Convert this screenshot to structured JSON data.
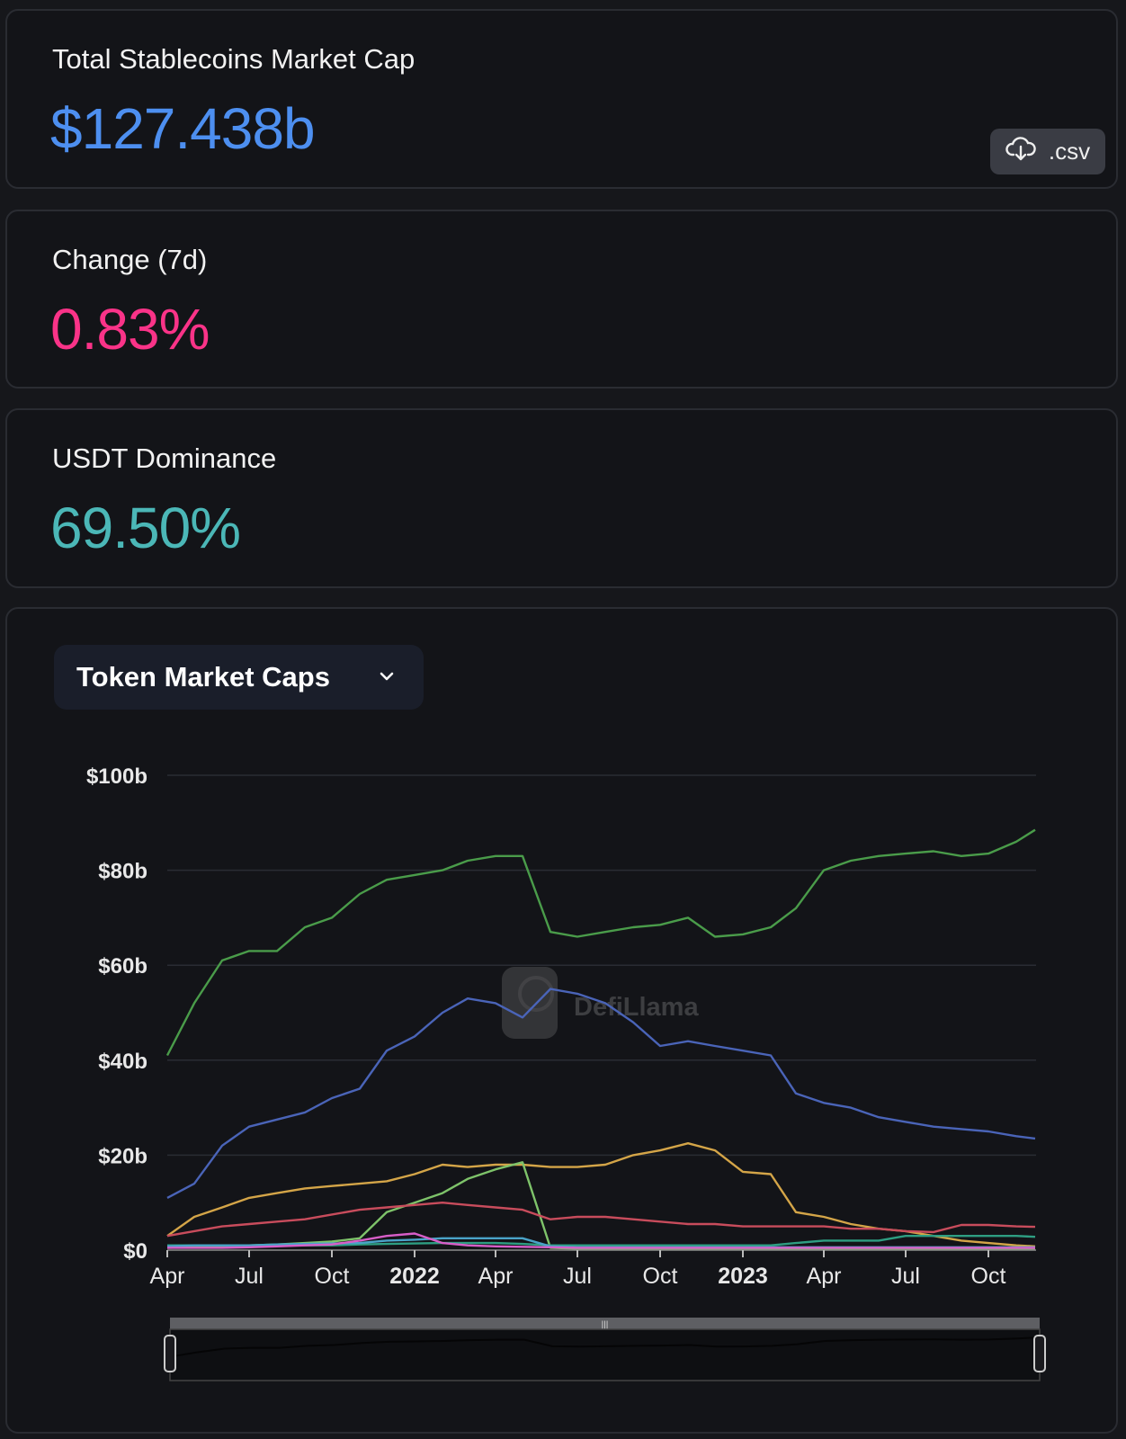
{
  "cards": {
    "total": {
      "label": "Total Stablecoins Market Cap",
      "value": "$127.438b",
      "color": "#4d8ff0"
    },
    "change": {
      "label": "Change (7d)",
      "value": "0.83%",
      "color": "#fa3388"
    },
    "dominance": {
      "label": "USDT Dominance",
      "value": "69.50%",
      "color": "#4bb7b7"
    }
  },
  "csv_button": {
    "label": ".csv",
    "icon": "cloud-download-icon"
  },
  "chart_selector": {
    "label": "Token Market Caps",
    "icon": "chevron-down-icon"
  },
  "watermark": "DefiLlama",
  "chart_data": {
    "type": "line",
    "title": "",
    "xlabel": "",
    "ylabel": "",
    "ylim": [
      0,
      100
    ],
    "y_ticks": [
      {
        "v": 0,
        "label": "$0"
      },
      {
        "v": 20,
        "label": "$20b"
      },
      {
        "v": 40,
        "label": "$40b"
      },
      {
        "v": 60,
        "label": "$60b"
      },
      {
        "v": 80,
        "label": "$80b"
      },
      {
        "v": 100,
        "label": "$100b"
      }
    ],
    "x_ticks": [
      {
        "date": "2021-04-01",
        "label": "Apr",
        "bold": false
      },
      {
        "date": "2021-07-01",
        "label": "Jul",
        "bold": false
      },
      {
        "date": "2021-10-01",
        "label": "Oct",
        "bold": false
      },
      {
        "date": "2022-01-01",
        "label": "2022",
        "bold": true
      },
      {
        "date": "2022-04-01",
        "label": "Apr",
        "bold": false
      },
      {
        "date": "2022-07-01",
        "label": "Jul",
        "bold": false
      },
      {
        "date": "2022-10-01",
        "label": "Oct",
        "bold": false
      },
      {
        "date": "2023-01-01",
        "label": "2023",
        "bold": true
      },
      {
        "date": "2023-04-01",
        "label": "Apr",
        "bold": false
      },
      {
        "date": "2023-07-01",
        "label": "Jul",
        "bold": false
      },
      {
        "date": "2023-10-01",
        "label": "Oct",
        "bold": false
      }
    ],
    "grid": true,
    "legend": "none",
    "x": [
      "2021-04-01",
      "2021-05-01",
      "2021-06-01",
      "2021-07-01",
      "2021-08-01",
      "2021-09-01",
      "2021-10-01",
      "2021-11-01",
      "2021-12-01",
      "2022-01-01",
      "2022-02-01",
      "2022-03-01",
      "2022-04-01",
      "2022-05-01",
      "2022-06-01",
      "2022-07-01",
      "2022-08-01",
      "2022-09-01",
      "2022-10-01",
      "2022-11-01",
      "2022-12-01",
      "2023-01-01",
      "2023-02-01",
      "2023-03-01",
      "2023-04-01",
      "2023-05-01",
      "2023-06-01",
      "2023-07-01",
      "2023-08-01",
      "2023-09-01",
      "2023-10-01",
      "2023-11-01",
      "2023-11-22"
    ],
    "series": [
      {
        "color": "#4a9c4a",
        "values": [
          41,
          52,
          61,
          63,
          63,
          68,
          70,
          75,
          78,
          79,
          80,
          82,
          83,
          83,
          67,
          66,
          67,
          68,
          68.5,
          70,
          66,
          66.5,
          68,
          72,
          80,
          82,
          83,
          83.5,
          84,
          83,
          83.5,
          86,
          88.5
        ]
      },
      {
        "color": "#4a64b8",
        "values": [
          11,
          14,
          22,
          26,
          27.5,
          29,
          32,
          34,
          42,
          45,
          50,
          53,
          52,
          49,
          55,
          54,
          52,
          48,
          43,
          44,
          43,
          42,
          41,
          33,
          31,
          30,
          28,
          27,
          26,
          25.5,
          25,
          24,
          23.5
        ]
      },
      {
        "color": "#d4a548",
        "values": [
          3,
          7,
          9,
          11,
          12,
          13,
          13.5,
          14,
          14.5,
          16,
          18,
          17.5,
          18,
          18,
          17.5,
          17.5,
          18,
          20,
          21,
          22.5,
          21,
          16.5,
          16,
          8,
          7,
          5.5,
          4.5,
          4,
          3,
          2,
          1.5,
          1,
          0.8
        ]
      },
      {
        "color": "#7ec36a",
        "values": [
          0.5,
          0.6,
          0.8,
          1,
          1.2,
          1.5,
          1.8,
          2.5,
          8,
          10,
          12,
          15,
          17,
          18.5,
          0.5,
          0.3,
          0.3,
          0.3,
          0.3,
          0.3,
          0.3,
          0.3,
          0.3,
          0.3,
          0.3,
          0.3,
          0.3,
          0.3,
          0.3,
          0.3,
          0.3,
          0.3,
          0.3
        ]
      },
      {
        "color": "#c84c5c",
        "values": [
          3,
          4,
          5,
          5.5,
          6,
          6.5,
          7.5,
          8.5,
          9,
          9.5,
          10,
          9.5,
          9,
          8.5,
          6.5,
          7,
          7,
          6.5,
          6,
          5.5,
          5.5,
          5,
          5,
          5,
          5,
          4.5,
          4.5,
          4,
          3.8,
          5.3,
          5.3,
          5,
          4.9
        ]
      },
      {
        "color": "#2e9e82",
        "values": [
          1,
          1,
          1,
          1,
          1,
          1,
          1,
          1.2,
          1.3,
          1.4,
          1.5,
          1.5,
          1.5,
          1.3,
          1,
          1,
          1,
          1,
          1,
          1,
          1,
          1,
          1,
          1.5,
          2,
          2,
          2,
          3,
          3,
          3,
          3,
          3,
          2.8
        ]
      },
      {
        "color": "#4aa3c8",
        "values": [
          0.8,
          1,
          1,
          1,
          1.2,
          1.3,
          1.4,
          1.5,
          2,
          2.2,
          2.5,
          2.5,
          2.5,
          2.5,
          0.8,
          0.6,
          0.6,
          0.6,
          0.6,
          0.6,
          0.6,
          0.6,
          0.6,
          0.6,
          0.6,
          0.6,
          0.6,
          0.6,
          0.6,
          0.6,
          0.6,
          0.6,
          0.6
        ]
      },
      {
        "color": "#d85ec8",
        "values": [
          0.5,
          0.5,
          0.5,
          0.6,
          0.8,
          1,
          1.2,
          2,
          3,
          3.5,
          1.5,
          1,
          0.8,
          0.7,
          0.6,
          0.5,
          0.5,
          0.5,
          0.5,
          0.5,
          0.5,
          0.5,
          0.5,
          0.5,
          0.5,
          0.5,
          0.5,
          0.5,
          0.5,
          0.5,
          0.5,
          0.5,
          0.5
        ]
      }
    ]
  }
}
